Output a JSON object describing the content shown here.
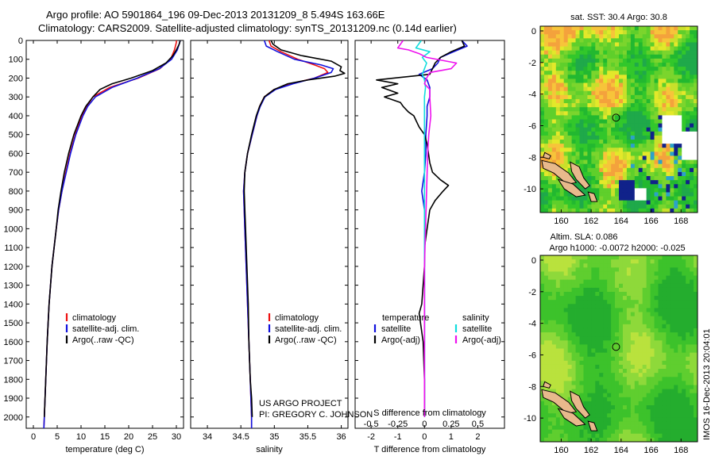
{
  "title_line1": "Argo profile: AO 5901864_196 09-Dec-2013 20131209_8 5.494S 163.66E",
  "title_line2": "Climatology: CARS2009. Satellite-adjusted climatology: synTS_20131209.nc (0.14d earlier)",
  "colors": {
    "climatology": "#ee1111",
    "satellite": "#1111dd",
    "argo": "#000000",
    "cyan": "#11dddd",
    "magenta": "#ee11ee"
  },
  "depth_ticks": [
    0,
    100,
    200,
    300,
    400,
    500,
    600,
    700,
    800,
    900,
    1000,
    1100,
    1200,
    1300,
    1400,
    1500,
    1600,
    1700,
    1800,
    1900,
    2000
  ],
  "chart_data": [
    {
      "type": "line",
      "name": "temperature",
      "xlabel": "temperature (deg C)",
      "xlim": [
        -1.5,
        31.5
      ],
      "xticks": [
        0,
        5,
        10,
        15,
        20,
        25,
        30
      ],
      "ylim": [
        0,
        2060
      ],
      "legend": [
        "climatology",
        "satellite-adj. clim.",
        "Argo(..raw -QC)"
      ],
      "series": [
        {
          "name": "climatology",
          "color": "#ee1111",
          "depth": [
            0,
            10,
            50,
            100,
            150,
            200,
            250,
            300,
            350,
            400,
            500,
            600,
            700,
            800,
            900,
            1000,
            1200,
            1400,
            1600,
            1800,
            2000,
            2060
          ],
          "values": [
            30.0,
            30.0,
            29.6,
            28.8,
            26.5,
            22.0,
            16.0,
            12.5,
            11.2,
            10.2,
            8.8,
            7.7,
            6.8,
            6.0,
            5.3,
            4.8,
            3.9,
            3.3,
            2.9,
            2.6,
            2.3,
            2.2
          ]
        },
        {
          "name": "satellite-adj. clim.",
          "color": "#1111dd",
          "depth": [
            0,
            10,
            50,
            100,
            150,
            200,
            250,
            300,
            350,
            400,
            500,
            600,
            700,
            800,
            900,
            1000,
            1200,
            1400,
            1600,
            1800,
            2000,
            2060
          ],
          "values": [
            30.8,
            30.7,
            30.2,
            29.0,
            26.4,
            21.8,
            16.5,
            13.0,
            11.4,
            10.4,
            8.9,
            7.8,
            6.9,
            6.0,
            5.3,
            4.8,
            3.9,
            3.3,
            2.9,
            2.6,
            2.3,
            2.2
          ]
        },
        {
          "name": "Argo(..raw -QC)",
          "color": "#000000",
          "depth": [
            0,
            20,
            50,
            80,
            120,
            160,
            200,
            230,
            260,
            300,
            350,
            400,
            500,
            600,
            700,
            800,
            900,
            1000,
            1200,
            1400,
            1600,
            1800,
            2000
          ],
          "values": [
            30.8,
            30.6,
            30.0,
            29.3,
            27.8,
            25.0,
            20.5,
            16.5,
            14.0,
            12.5,
            11.0,
            10.0,
            8.5,
            7.4,
            6.5,
            5.8,
            5.2,
            4.8,
            3.9,
            3.3,
            2.9,
            2.6,
            2.3
          ]
        }
      ]
    },
    {
      "type": "line",
      "name": "salinity",
      "xlabel": "salinity",
      "xlim": [
        33.75,
        36.1
      ],
      "xticks": [
        34,
        34.5,
        35,
        35.5,
        36
      ],
      "ylim": [
        0,
        2060
      ],
      "legend": [
        "climatology",
        "satellite-adj. clim.",
        "Argo(..raw -QC)"
      ],
      "series": [
        {
          "name": "climatology",
          "color": "#ee1111",
          "depth": [
            0,
            30,
            60,
            100,
            130,
            150,
            170,
            200,
            230,
            260,
            300,
            350,
            400,
            500,
            600,
            700,
            800,
            900,
            1000,
            1200,
            1400,
            1600,
            1800,
            2000,
            2060
          ],
          "values": [
            34.92,
            34.95,
            35.1,
            35.35,
            35.6,
            35.75,
            35.8,
            35.6,
            35.25,
            35.0,
            34.85,
            34.78,
            34.74,
            34.67,
            34.6,
            34.56,
            34.54,
            34.55,
            34.56,
            34.58,
            34.6,
            34.62,
            34.64,
            34.66,
            34.66
          ]
        },
        {
          "name": "satellite-adj. clim.",
          "color": "#1111dd",
          "depth": [
            0,
            30,
            60,
            100,
            130,
            150,
            170,
            200,
            230,
            260,
            300,
            350,
            400,
            500,
            600,
            700,
            800,
            900,
            1000,
            1200,
            1400,
            1600,
            1800,
            2000,
            2060
          ],
          "values": [
            34.85,
            34.88,
            35.05,
            35.3,
            35.7,
            35.88,
            35.85,
            35.6,
            35.28,
            35.02,
            34.86,
            34.79,
            34.74,
            34.67,
            34.6,
            34.56,
            34.54,
            34.55,
            34.56,
            34.58,
            34.6,
            34.62,
            34.64,
            34.66,
            34.66
          ]
        },
        {
          "name": "Argo(..raw -QC)",
          "color": "#000000",
          "depth": [
            0,
            20,
            50,
            80,
            110,
            140,
            160,
            175,
            190,
            210,
            230,
            260,
            300,
            350,
            400,
            500,
            600,
            700,
            800,
            900,
            1000,
            1200,
            1400,
            1600,
            1800,
            1900,
            2000
          ],
          "values": [
            34.95,
            34.98,
            35.1,
            35.4,
            35.85,
            36.0,
            35.98,
            36.05,
            35.9,
            35.5,
            35.2,
            35.0,
            34.85,
            34.78,
            34.73,
            34.66,
            34.6,
            34.56,
            34.55,
            34.56,
            34.57,
            34.59,
            34.61,
            34.62,
            34.64,
            34.66,
            34.67
          ]
        }
      ]
    },
    {
      "type": "line",
      "name": "difference",
      "xlabel": "T difference from climatology",
      "xlabel_top": "S difference from climatology",
      "xlim": [
        -2.6,
        3.0
      ],
      "xticks": [
        -2,
        -1,
        0,
        1,
        2
      ],
      "xticks_top_labels": [
        "-0.5",
        "-0.25",
        "0",
        "0.25",
        "0.5"
      ],
      "xticks_top_values": [
        -0.5,
        -0.25,
        0,
        0.25,
        0.5
      ],
      "ylim": [
        0,
        2060
      ],
      "legend_left": [
        "temperature",
        "satellite",
        "Argo(-adj)"
      ],
      "legend_right": [
        "salinity",
        "satellite",
        "Argo(-adj)"
      ],
      "series": [
        {
          "name": "T satellite",
          "color": "#1111dd",
          "depth": [
            0,
            30,
            60,
            90,
            120,
            150,
            180,
            210,
            250,
            300,
            350,
            400,
            500,
            600,
            700,
            800,
            900,
            1000,
            1200,
            1400,
            1600,
            1800,
            2000
          ],
          "values": [
            1.4,
            1.6,
            1.1,
            0.6,
            0.5,
            0.3,
            -0.2,
            0.1,
            0.2,
            0.2,
            0.1,
            0.1,
            0.05,
            0.05,
            0.0,
            -0.1,
            0.0,
            0.0,
            0.0,
            0.0,
            0.0,
            0.0,
            0.0
          ]
        },
        {
          "name": "T Argo(-adj)",
          "color": "#000000",
          "depth": [
            0,
            30,
            60,
            90,
            120,
            150,
            180,
            210,
            230,
            250,
            280,
            300,
            330,
            350,
            380,
            400,
            430,
            460,
            500,
            550,
            600,
            650,
            700,
            740,
            770,
            800,
            850,
            900,
            1000,
            1100,
            1200,
            1300,
            1400,
            1450,
            1500,
            1600,
            1800,
            2000
          ],
          "values": [
            1.4,
            1.5,
            1.0,
            0.6,
            0.4,
            0.3,
            0.2,
            -1.8,
            -1.0,
            -1.6,
            -1.0,
            -1.5,
            -0.9,
            -0.8,
            -0.6,
            -0.4,
            -0.3,
            -0.2,
            0.0,
            0.1,
            0.15,
            0.2,
            0.3,
            0.6,
            0.9,
            0.7,
            0.4,
            0.2,
            0.1,
            0.0,
            0.0,
            -0.05,
            -0.1,
            -0.2,
            -0.15,
            -0.05,
            0.0,
            0.0
          ]
        },
        {
          "name": "S satellite",
          "color": "#11dddd",
          "depth": [
            0,
            40,
            60,
            90,
            120,
            150,
            180,
            210,
            250,
            300,
            400,
            500,
            600,
            800,
            1000,
            1200,
            1400,
            1600,
            1800,
            2000
          ],
          "values": [
            -0.03,
            -0.08,
            0.05,
            -0.02,
            0.02,
            0.0,
            -0.02,
            0.0,
            0.01,
            0.0,
            0.0,
            0.0,
            0.0,
            0.0,
            0.0,
            0.0,
            0.0,
            0.0,
            0.0,
            0.0
          ]
        },
        {
          "name": "S Argo(-adj)",
          "color": "#ee11ee",
          "depth": [
            0,
            40,
            50,
            70,
            90,
            120,
            150,
            170,
            200,
            230,
            260,
            300,
            400,
            500,
            600,
            800,
            1000,
            1200,
            1400,
            1600,
            1800,
            2000
          ],
          "values": [
            -0.2,
            -0.25,
            -0.15,
            -0.05,
            0.02,
            0.3,
            0.25,
            0.05,
            0.02,
            0.0,
            0.05,
            0.05,
            0.06,
            0.04,
            0.03,
            0.02,
            0.01,
            0.0,
            0.0,
            0.0,
            0.0,
            0.0
          ]
        }
      ]
    },
    {
      "type": "heatmap",
      "name": "sst_map",
      "title": "sat. SST: 30.4  Argo: 30.8",
      "xticks": [
        160,
        162,
        164,
        166,
        168
      ],
      "yticks": [
        0,
        -2,
        -4,
        -6,
        -8,
        -10
      ],
      "xlim": [
        158.6,
        169.1
      ],
      "ylim": [
        -11.5,
        0.3
      ],
      "argo_position": {
        "lon": 163.66,
        "lat": -5.494
      }
    },
    {
      "type": "heatmap",
      "name": "sla_map",
      "title_line1": "Altim. SLA: 0.086",
      "title_line2": "Argo h1000: -0.0072  h2000: -0.025",
      "xticks": [
        160,
        162,
        164,
        166,
        168
      ],
      "yticks": [
        0,
        -2,
        -4,
        -6,
        -8,
        -10
      ],
      "xlim": [
        158.6,
        169.1
      ],
      "ylim": [
        -11.5,
        0.3
      ],
      "argo_position": {
        "lon": 163.66,
        "lat": -5.494
      }
    }
  ],
  "footer_left_line1": "US ARGO PROJECT",
  "footer_left_line2": "PI: GREGORY C. JOHNSON",
  "side_stamp": "IMOS 16-Dec-2013 20:04:01"
}
